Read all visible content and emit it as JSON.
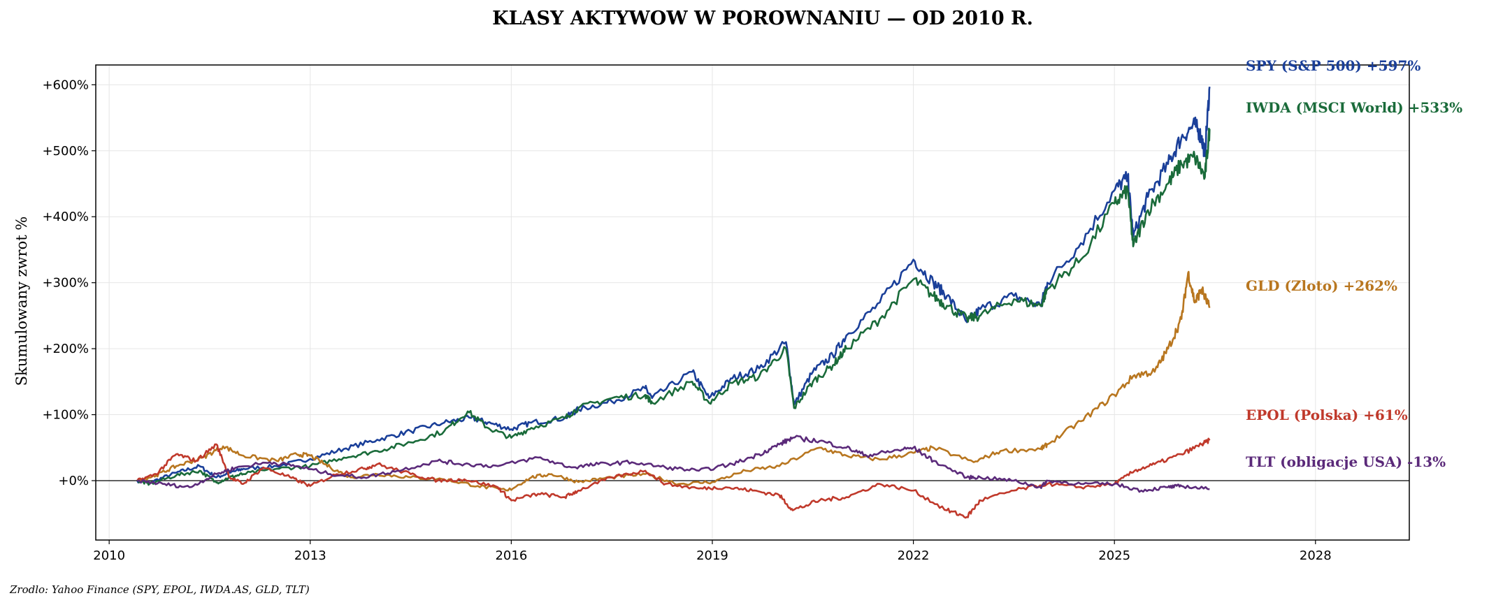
{
  "chart_data": {
    "type": "line",
    "title": "KLASY AKTYWOW W POROWNANIU — OD 2010 R.",
    "xlabel": "",
    "ylabel": "Skumulowany zwrot %",
    "source": "Zrodlo: Yahoo Finance (SPY, EPOL, IWDA.AS, GLD, TLT)",
    "xlim": [
      2009.8,
      2029.4
    ],
    "ylim": [
      -90,
      630
    ],
    "x_ticks": [
      2010,
      2013,
      2016,
      2019,
      2022,
      2025,
      2028
    ],
    "x_tick_labels": [
      "2010",
      "2013",
      "2016",
      "2019",
      "2022",
      "2025",
      "2028"
    ],
    "y_ticks": [
      0,
      100,
      200,
      300,
      400,
      500,
      600
    ],
    "y_tick_labels": [
      "+0%",
      "+100%",
      "+200%",
      "+300%",
      "+400%",
      "+500%",
      "+600%"
    ],
    "grid": true,
    "zero_line": true,
    "legend": "end-of-line labels at right",
    "series": [
      {
        "name": "SPY (S&P 500)",
        "end_label": "SPY (S&P 500)  +597%",
        "color": "#1a3f99",
        "points": [
          [
            2010.42,
            0
          ],
          [
            2010.6,
            -3
          ],
          [
            2011.0,
            12
          ],
          [
            2011.35,
            22
          ],
          [
            2011.6,
            5
          ],
          [
            2011.8,
            12
          ],
          [
            2012.0,
            18
          ],
          [
            2012.5,
            22
          ],
          [
            2013.0,
            33
          ],
          [
            2013.5,
            48
          ],
          [
            2014.0,
            62
          ],
          [
            2014.5,
            75
          ],
          [
            2015.0,
            88
          ],
          [
            2015.4,
            95
          ],
          [
            2015.65,
            88
          ],
          [
            2016.0,
            78
          ],
          [
            2016.3,
            88
          ],
          [
            2016.8,
            95
          ],
          [
            2017.0,
            108
          ],
          [
            2017.5,
            120
          ],
          [
            2018.0,
            140
          ],
          [
            2018.1,
            125
          ],
          [
            2018.7,
            165
          ],
          [
            2018.95,
            125
          ],
          [
            2019.3,
            155
          ],
          [
            2019.7,
            170
          ],
          [
            2020.1,
            210
          ],
          [
            2020.22,
            115
          ],
          [
            2020.5,
            165
          ],
          [
            2020.8,
            190
          ],
          [
            2021.0,
            220
          ],
          [
            2021.5,
            270
          ],
          [
            2022.0,
            335
          ],
          [
            2022.3,
            300
          ],
          [
            2022.5,
            280
          ],
          [
            2022.8,
            240
          ],
          [
            2023.0,
            260
          ],
          [
            2023.5,
            280
          ],
          [
            2023.9,
            265
          ],
          [
            2024.0,
            300
          ],
          [
            2024.5,
            360
          ],
          [
            2025.0,
            440
          ],
          [
            2025.2,
            460
          ],
          [
            2025.28,
            370
          ],
          [
            2025.5,
            430
          ],
          [
            2025.8,
            480
          ],
          [
            2026.0,
            520
          ],
          [
            2026.2,
            540
          ],
          [
            2026.3,
            520
          ],
          [
            2026.35,
            495
          ],
          [
            2026.42,
            597
          ]
        ]
      },
      {
        "name": "IWDA (MSCI World)",
        "end_label": "IWDA (MSCI World)  +533%",
        "color": "#1a6b3a",
        "points": [
          [
            2010.42,
            0
          ],
          [
            2010.6,
            -5
          ],
          [
            2011.0,
            8
          ],
          [
            2011.35,
            15
          ],
          [
            2011.6,
            -3
          ],
          [
            2011.8,
            5
          ],
          [
            2012.0,
            10
          ],
          [
            2012.5,
            18
          ],
          [
            2013.0,
            22
          ],
          [
            2013.5,
            35
          ],
          [
            2014.0,
            45
          ],
          [
            2014.5,
            58
          ],
          [
            2015.0,
            75
          ],
          [
            2015.35,
            105
          ],
          [
            2015.65,
            80
          ],
          [
            2016.0,
            65
          ],
          [
            2016.3,
            80
          ],
          [
            2016.8,
            95
          ],
          [
            2017.0,
            110
          ],
          [
            2017.5,
            125
          ],
          [
            2018.0,
            130
          ],
          [
            2018.1,
            118
          ],
          [
            2018.7,
            150
          ],
          [
            2018.95,
            118
          ],
          [
            2019.3,
            148
          ],
          [
            2019.7,
            158
          ],
          [
            2020.1,
            200
          ],
          [
            2020.22,
            110
          ],
          [
            2020.5,
            150
          ],
          [
            2020.8,
            175
          ],
          [
            2021.0,
            200
          ],
          [
            2021.5,
            245
          ],
          [
            2022.0,
            305
          ],
          [
            2022.3,
            280
          ],
          [
            2022.5,
            265
          ],
          [
            2022.8,
            245
          ],
          [
            2023.0,
            250
          ],
          [
            2023.5,
            275
          ],
          [
            2023.9,
            265
          ],
          [
            2024.0,
            290
          ],
          [
            2024.5,
            335
          ],
          [
            2025.0,
            420
          ],
          [
            2025.2,
            440
          ],
          [
            2025.28,
            355
          ],
          [
            2025.5,
            410
          ],
          [
            2025.8,
            450
          ],
          [
            2026.0,
            480
          ],
          [
            2026.2,
            490
          ],
          [
            2026.35,
            460
          ],
          [
            2026.42,
            533
          ]
        ]
      },
      {
        "name": "GLD (Zloto)",
        "end_label": "GLD (Zloto)  +262%",
        "color": "#b8761f",
        "points": [
          [
            2010.42,
            0
          ],
          [
            2010.7,
            8
          ],
          [
            2011.0,
            22
          ],
          [
            2011.4,
            35
          ],
          [
            2011.7,
            52
          ],
          [
            2012.0,
            38
          ],
          [
            2012.5,
            30
          ],
          [
            2012.8,
            40
          ],
          [
            2013.0,
            38
          ],
          [
            2013.3,
            20
          ],
          [
            2013.6,
            5
          ],
          [
            2014.0,
            10
          ],
          [
            2014.5,
            5
          ],
          [
            2015.0,
            2
          ],
          [
            2015.5,
            -8
          ],
          [
            2015.95,
            -15
          ],
          [
            2016.3,
            5
          ],
          [
            2016.6,
            10
          ],
          [
            2017.0,
            -2
          ],
          [
            2017.5,
            5
          ],
          [
            2018.0,
            10
          ],
          [
            2018.5,
            -5
          ],
          [
            2019.0,
            -2
          ],
          [
            2019.5,
            15
          ],
          [
            2020.0,
            22
          ],
          [
            2020.6,
            50
          ],
          [
            2021.0,
            38
          ],
          [
            2021.5,
            32
          ],
          [
            2022.0,
            42
          ],
          [
            2022.3,
            50
          ],
          [
            2022.9,
            28
          ],
          [
            2023.3,
            45
          ],
          [
            2023.9,
            48
          ],
          [
            2024.0,
            55
          ],
          [
            2024.5,
            90
          ],
          [
            2025.0,
            130
          ],
          [
            2025.3,
            160
          ],
          [
            2025.6,
            165
          ],
          [
            2025.8,
            200
          ],
          [
            2026.0,
            245
          ],
          [
            2026.1,
            315
          ],
          [
            2026.2,
            270
          ],
          [
            2026.3,
            290
          ],
          [
            2026.42,
            262
          ]
        ]
      },
      {
        "name": "EPOL (Polska)",
        "end_label": "EPOL (Polska)  +61%",
        "color": "#c0392b",
        "points": [
          [
            2010.42,
            0
          ],
          [
            2010.7,
            10
          ],
          [
            2011.0,
            40
          ],
          [
            2011.3,
            30
          ],
          [
            2011.6,
            55
          ],
          [
            2011.8,
            5
          ],
          [
            2012.0,
            -5
          ],
          [
            2012.3,
            20
          ],
          [
            2012.7,
            5
          ],
          [
            2013.0,
            -8
          ],
          [
            2013.4,
            10
          ],
          [
            2013.8,
            18
          ],
          [
            2014.0,
            25
          ],
          [
            2014.5,
            10
          ],
          [
            2014.9,
            0
          ],
          [
            2015.3,
            2
          ],
          [
            2015.8,
            -10
          ],
          [
            2016.0,
            -30
          ],
          [
            2016.4,
            -20
          ],
          [
            2016.8,
            -25
          ],
          [
            2017.0,
            -15
          ],
          [
            2017.5,
            5
          ],
          [
            2018.0,
            15
          ],
          [
            2018.3,
            -5
          ],
          [
            2018.8,
            -12
          ],
          [
            2019.2,
            -10
          ],
          [
            2019.6,
            -15
          ],
          [
            2020.0,
            -22
          ],
          [
            2020.2,
            -45
          ],
          [
            2020.6,
            -30
          ],
          [
            2021.0,
            -25
          ],
          [
            2021.5,
            -5
          ],
          [
            2022.0,
            -15
          ],
          [
            2022.5,
            -45
          ],
          [
            2022.8,
            -55
          ],
          [
            2023.0,
            -30
          ],
          [
            2023.5,
            -15
          ],
          [
            2024.0,
            -5
          ],
          [
            2024.5,
            -10
          ],
          [
            2025.0,
            -5
          ],
          [
            2025.3,
            15
          ],
          [
            2025.6,
            25
          ],
          [
            2026.0,
            40
          ],
          [
            2026.3,
            55
          ],
          [
            2026.42,
            61
          ]
        ]
      },
      {
        "name": "TLT (obligacje USA)",
        "end_label": "TLT (obligacje USA)  -13%",
        "color": "#5b2a7a",
        "points": [
          [
            2010.42,
            0
          ],
          [
            2010.8,
            -5
          ],
          [
            2011.2,
            -10
          ],
          [
            2011.6,
            10
          ],
          [
            2011.9,
            20
          ],
          [
            2012.4,
            28
          ],
          [
            2012.8,
            22
          ],
          [
            2013.3,
            10
          ],
          [
            2013.8,
            5
          ],
          [
            2014.3,
            15
          ],
          [
            2014.9,
            30
          ],
          [
            2015.3,
            25
          ],
          [
            2015.8,
            22
          ],
          [
            2016.4,
            35
          ],
          [
            2016.9,
            20
          ],
          [
            2017.3,
            25
          ],
          [
            2017.8,
            28
          ],
          [
            2018.3,
            20
          ],
          [
            2018.8,
            15
          ],
          [
            2019.3,
            25
          ],
          [
            2019.7,
            40
          ],
          [
            2020.0,
            55
          ],
          [
            2020.2,
            65
          ],
          [
            2020.6,
            60
          ],
          [
            2021.0,
            50
          ],
          [
            2021.3,
            38
          ],
          [
            2021.7,
            45
          ],
          [
            2022.0,
            50
          ],
          [
            2022.3,
            30
          ],
          [
            2022.8,
            5
          ],
          [
            2023.0,
            5
          ],
          [
            2023.5,
            0
          ],
          [
            2023.9,
            -10
          ],
          [
            2024.0,
            0
          ],
          [
            2024.5,
            -5
          ],
          [
            2025.0,
            -5
          ],
          [
            2025.4,
            -15
          ],
          [
            2025.8,
            -10
          ],
          [
            2026.0,
            -8
          ],
          [
            2026.42,
            -13
          ]
        ]
      }
    ]
  }
}
